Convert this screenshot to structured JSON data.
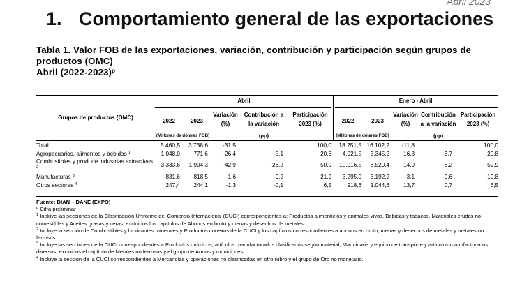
{
  "header": {
    "corner_date": "Abril 2023",
    "section_number": "1.",
    "section_title": "Comportamiento general de las exportaciones"
  },
  "table_title": {
    "line1": "Tabla 1. Valor FOB de las exportaciones, variación, contribución y participación según grupos de",
    "line2": "productos (OMC)",
    "line3": "Abril (2022-2023)",
    "sup": "p"
  },
  "table": {
    "group_header": "Grupos de productos (OMC)",
    "period1_label": "Abril",
    "period2_label": "Enero - Abril",
    "col_y2022": "2022",
    "col_y2023": "2023",
    "col_variacion": "Variación",
    "col_variacion_unit": "(%)",
    "col_contrib_p1": "Contribución a",
    "col_contrib_p1_b": "la variación",
    "col_contrib_p2": "Contribución",
    "col_contrib_p2_b": "a la variación",
    "col_contrib_unit": "(pp)",
    "col_particip": "Participación",
    "col_particip_b": "2023 (%)",
    "unit_label": "(Millones de dólares FOB)",
    "rows": [
      {
        "label": "Total",
        "sup": "",
        "a22": "5.460,5",
        "a23": "3.738,6",
        "avar": "-31,5",
        "acon": "",
        "apar": "100,0",
        "e22": "18.251,5",
        "e23": "16.102,2",
        "evar": "-11,8",
        "econ": "",
        "epar": "100,0"
      },
      {
        "label": "Agropecuarios, alimentos y bebidas",
        "sup": "1",
        "a22": "1.048,0",
        "a23": "771,6",
        "avar": "-26,4",
        "acon": "-5,1",
        "apar": "20,6",
        "e22": "4.021,5",
        "e23": "3.345,2",
        "evar": "-16,8",
        "econ": "-3,7",
        "epar": "20,8"
      },
      {
        "label": "Combustibles y prod. de industrias extractivas",
        "sup": "2",
        "a22": "3.333,6",
        "a23": "1.904,3",
        "avar": "-42,9",
        "acon": "-26,2",
        "apar": "50,9",
        "e22": "10.016,5",
        "e23": "8.520,4",
        "evar": "-14,9",
        "econ": "-8,2",
        "epar": "52,9"
      },
      {
        "label": "Manufacturas",
        "sup": "3",
        "a22": "831,6",
        "a23": "818,5",
        "avar": "-1,6",
        "acon": "-0,2",
        "apar": "21,9",
        "e22": "3.295,0",
        "e23": "3.192,2",
        "evar": "-3,1",
        "econ": "-0,6",
        "epar": "19,8"
      },
      {
        "label": "Otros sectores",
        "sup": "4",
        "a22": "247,4",
        "a23": "244,1",
        "avar": "-1,3",
        "acon": "-0,1",
        "apar": "6,5",
        "e22": "918,6",
        "e23": "1.044,6",
        "evar": "13,7",
        "econ": "0,7",
        "epar": "6,5"
      }
    ]
  },
  "notes": {
    "source": "Fuente: DIAN – DANE (EXPO)",
    "cifra": "Cifra preliminar",
    "cifra_mark": "p",
    "n1_mark": "1",
    "n1": "Incluye las secciones de la Clasificación Uniforme del Comercio Internacional (CUCI) correspondientes a: Productos alimenticios y animales vivos, Bebidas y tabacos, Materiales crudos no comestibles y Aceites grasas y ceras, excluidos los capítulos de Abonos en bruto y menas y desechos de metales.",
    "n2_mark": "2",
    "n2": "Incluye la sección de Combustibles y lubricantes minerales y Productos conexos de la CUCI y los capítulos correspondientes a abonos en bruto, menas y desechos de metales y metales no ferrosos.",
    "n3_mark": "3",
    "n3": "Incluye las secciones de la CUCI correspondientes a Productos químicos, artículos manufacturados clasificados según material, Maquinaria y equipo de transporte y artículos manufacturados diversos, excluidos el capítulo de Metales no ferrosos y el grupo de Armas y municiones.",
    "n4_mark": "4",
    "n4": "Incluye la sección de la CUCI correspondientes a Mercancías y operaciones no clasificadas en otro rubro y el grupo de Oro no monetario."
  }
}
